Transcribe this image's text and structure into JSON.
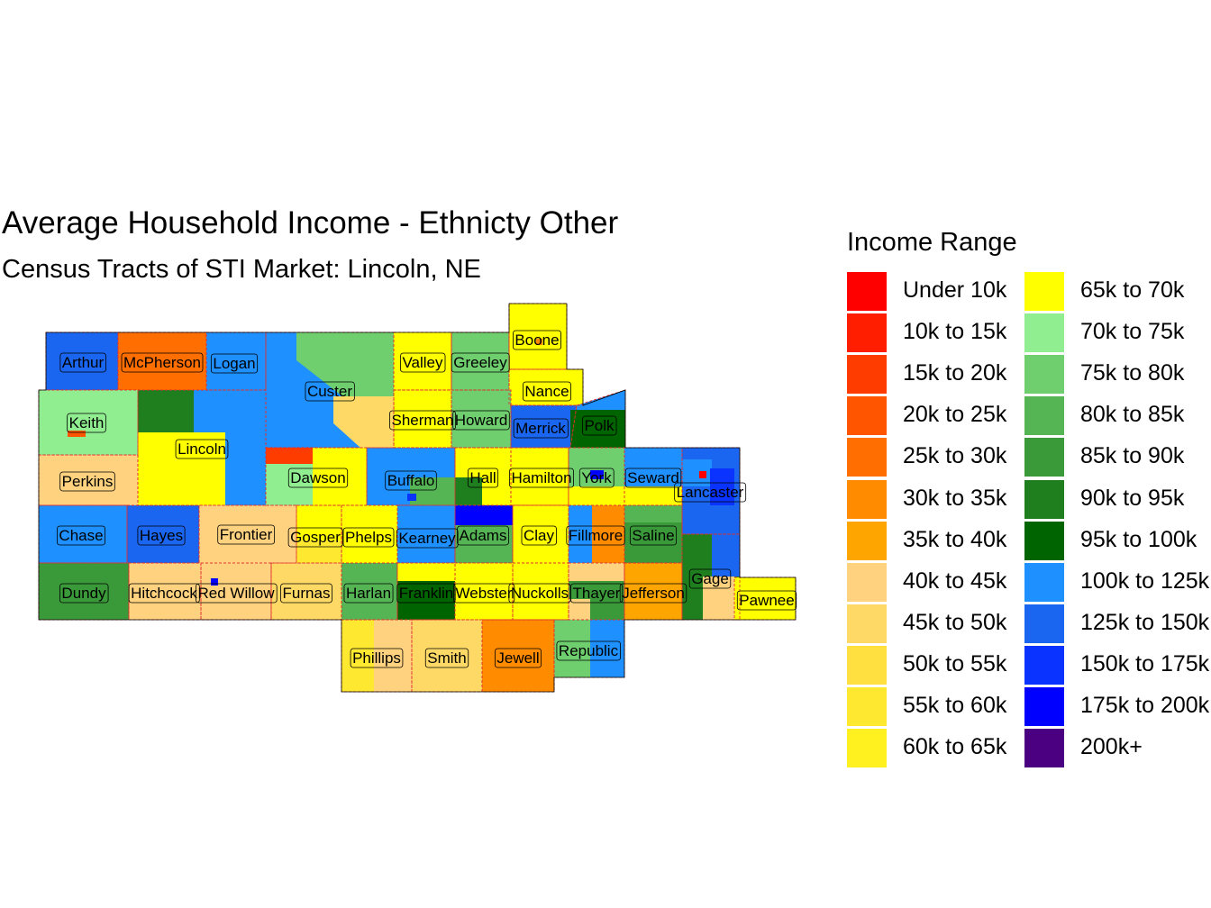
{
  "title": "Average Household Income - Ethnicty Other",
  "subtitle": "Census Tracts of STI Market: Lincoln, NE",
  "legend": {
    "title": "Income Range",
    "items": [
      {
        "label": "Under 10k",
        "color": "#FF0000"
      },
      {
        "label": "10k to 15k",
        "color": "#FF1E00"
      },
      {
        "label": "15k to 20k",
        "color": "#FF3C00"
      },
      {
        "label": "20k to 25k",
        "color": "#FF5500"
      },
      {
        "label": "25k to 30k",
        "color": "#FF6E00"
      },
      {
        "label": "30k to 35k",
        "color": "#FF8C00"
      },
      {
        "label": "35k to 40k",
        "color": "#FFA500"
      },
      {
        "label": "40k to 45k",
        "color": "#FFD27F"
      },
      {
        "label": "45k to 50k",
        "color": "#FFD966"
      },
      {
        "label": "50k to 55k",
        "color": "#FFE040"
      },
      {
        "label": "55k to 60k",
        "color": "#FFE830"
      },
      {
        "label": "60k to 65k",
        "color": "#FFF020"
      },
      {
        "label": "65k to 70k",
        "color": "#FFFF00"
      },
      {
        "label": "70k to 75k",
        "color": "#90EE90"
      },
      {
        "label": "75k to 80k",
        "color": "#6FCF6F"
      },
      {
        "label": "80k to 85k",
        "color": "#55B555"
      },
      {
        "label": "85k to 90k",
        "color": "#3A9A3A"
      },
      {
        "label": "90k to 95k",
        "color": "#1F7F1F"
      },
      {
        "label": "95k to 100k",
        "color": "#006400"
      },
      {
        "label": "100k to 125k",
        "color": "#1E90FF"
      },
      {
        "label": "125k to 150k",
        "color": "#1A66F0"
      },
      {
        "label": "150k to 175k",
        "color": "#0A33FF"
      },
      {
        "label": "175k to 200k",
        "color": "#0000FF"
      },
      {
        "label": "200k+",
        "color": "#4B0082"
      }
    ]
  },
  "counties": [
    {
      "name": "Arthur",
      "color": "#1A66F0"
    },
    {
      "name": "McPherson",
      "color": "#FF6E00"
    },
    {
      "name": "Logan",
      "color": "#1E90FF"
    },
    {
      "name": "Custer",
      "color": "#1E90FF"
    },
    {
      "name": "Valley",
      "color": "#FFFF00"
    },
    {
      "name": "Greeley",
      "color": "#6FCF6F"
    },
    {
      "name": "Boone",
      "color": "#FFFF00"
    },
    {
      "name": "Nance",
      "color": "#FFFF00"
    },
    {
      "name": "Keith",
      "color": "#90EE90"
    },
    {
      "name": "Lincoln",
      "color": "#1E90FF"
    },
    {
      "name": "Sherman",
      "color": "#FFFF00"
    },
    {
      "name": "Howard",
      "color": "#6FCF6F"
    },
    {
      "name": "Merrick",
      "color": "#1A66F0"
    },
    {
      "name": "Polk",
      "color": "#1E90FF"
    },
    {
      "name": "Perkins",
      "color": "#FFD27F"
    },
    {
      "name": "Dawson",
      "color": "#FFFF00"
    },
    {
      "name": "Buffalo",
      "color": "#1E90FF"
    },
    {
      "name": "Hall",
      "color": "#FFFF00"
    },
    {
      "name": "Hamilton",
      "color": "#FFFF00"
    },
    {
      "name": "York",
      "color": "#6FCF6F"
    },
    {
      "name": "Seward",
      "color": "#1E90FF"
    },
    {
      "name": "Lancaster",
      "color": "#1A66F0"
    },
    {
      "name": "Chase",
      "color": "#1E90FF"
    },
    {
      "name": "Hayes",
      "color": "#1A66F0"
    },
    {
      "name": "Frontier",
      "color": "#FFD27F"
    },
    {
      "name": "Gosper",
      "color": "#FFFF00"
    },
    {
      "name": "Phelps",
      "color": "#FFFF00"
    },
    {
      "name": "Kearney",
      "color": "#1E90FF"
    },
    {
      "name": "Adams",
      "color": "#55B555"
    },
    {
      "name": "Clay",
      "color": "#FFFF00"
    },
    {
      "name": "Fillmore",
      "color": "#1E90FF"
    },
    {
      "name": "Saline",
      "color": "#3A9A3A"
    },
    {
      "name": "Dundy",
      "color": "#3A9A3A"
    },
    {
      "name": "Hitchcock",
      "color": "#FFD27F"
    },
    {
      "name": "Red Willow",
      "color": "#FFD27F"
    },
    {
      "name": "Furnas",
      "color": "#FFD966"
    },
    {
      "name": "Harlan",
      "color": "#55B555"
    },
    {
      "name": "Franklin",
      "color": "#006400"
    },
    {
      "name": "Webster",
      "color": "#FFFF00"
    },
    {
      "name": "Nuckolls",
      "color": "#FFFF00"
    },
    {
      "name": "Thayer",
      "color": "#FFD27F"
    },
    {
      "name": "Jefferson",
      "color": "#FFA500"
    },
    {
      "name": "Gage",
      "color": "#1F7F1F"
    },
    {
      "name": "Pawnee",
      "color": "#FFFF00"
    },
    {
      "name": "Phillips",
      "color": "#FFE830"
    },
    {
      "name": "Smith",
      "color": "#FFD966"
    },
    {
      "name": "Jewell",
      "color": "#FF8C00"
    },
    {
      "name": "Republic",
      "color": "#6FCF6F"
    }
  ]
}
